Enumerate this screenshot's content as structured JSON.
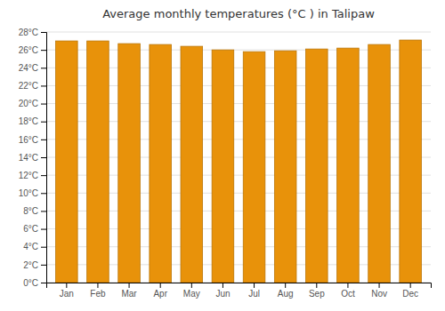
{
  "chart_data": {
    "type": "bar",
    "title": "Average monthly temperatures (°C ) in Talipaw",
    "categories": [
      "Jan",
      "Feb",
      "Mar",
      "Apr",
      "May",
      "Jun",
      "Jul",
      "Aug",
      "Sep",
      "Oct",
      "Nov",
      "Dec"
    ],
    "values": [
      27.0,
      27.0,
      26.7,
      26.6,
      26.4,
      26.0,
      25.8,
      25.9,
      26.1,
      26.2,
      26.6,
      27.1
    ],
    "color": "#E8920A",
    "ylim": [
      0,
      28
    ],
    "yticks": [
      {
        "value": 0,
        "label": "0°C"
      },
      {
        "value": 2,
        "label": "2°C"
      },
      {
        "value": 4,
        "label": "4°C"
      },
      {
        "value": 6,
        "label": "6°C"
      },
      {
        "value": 8,
        "label": "8°C"
      },
      {
        "value": 10,
        "label": "10°C"
      },
      {
        "value": 12,
        "label": "12°C"
      },
      {
        "value": 14,
        "label": "14°C"
      },
      {
        "value": 16,
        "label": "16°C"
      },
      {
        "value": 18,
        "label": "18°C"
      },
      {
        "value": 20,
        "label": "20°C"
      },
      {
        "value": 22,
        "label": "22°C"
      },
      {
        "value": 24,
        "label": "24°C"
      },
      {
        "value": 26,
        "label": "26°C"
      },
      {
        "value": 28,
        "label": "28°C"
      }
    ],
    "grid": true
  }
}
